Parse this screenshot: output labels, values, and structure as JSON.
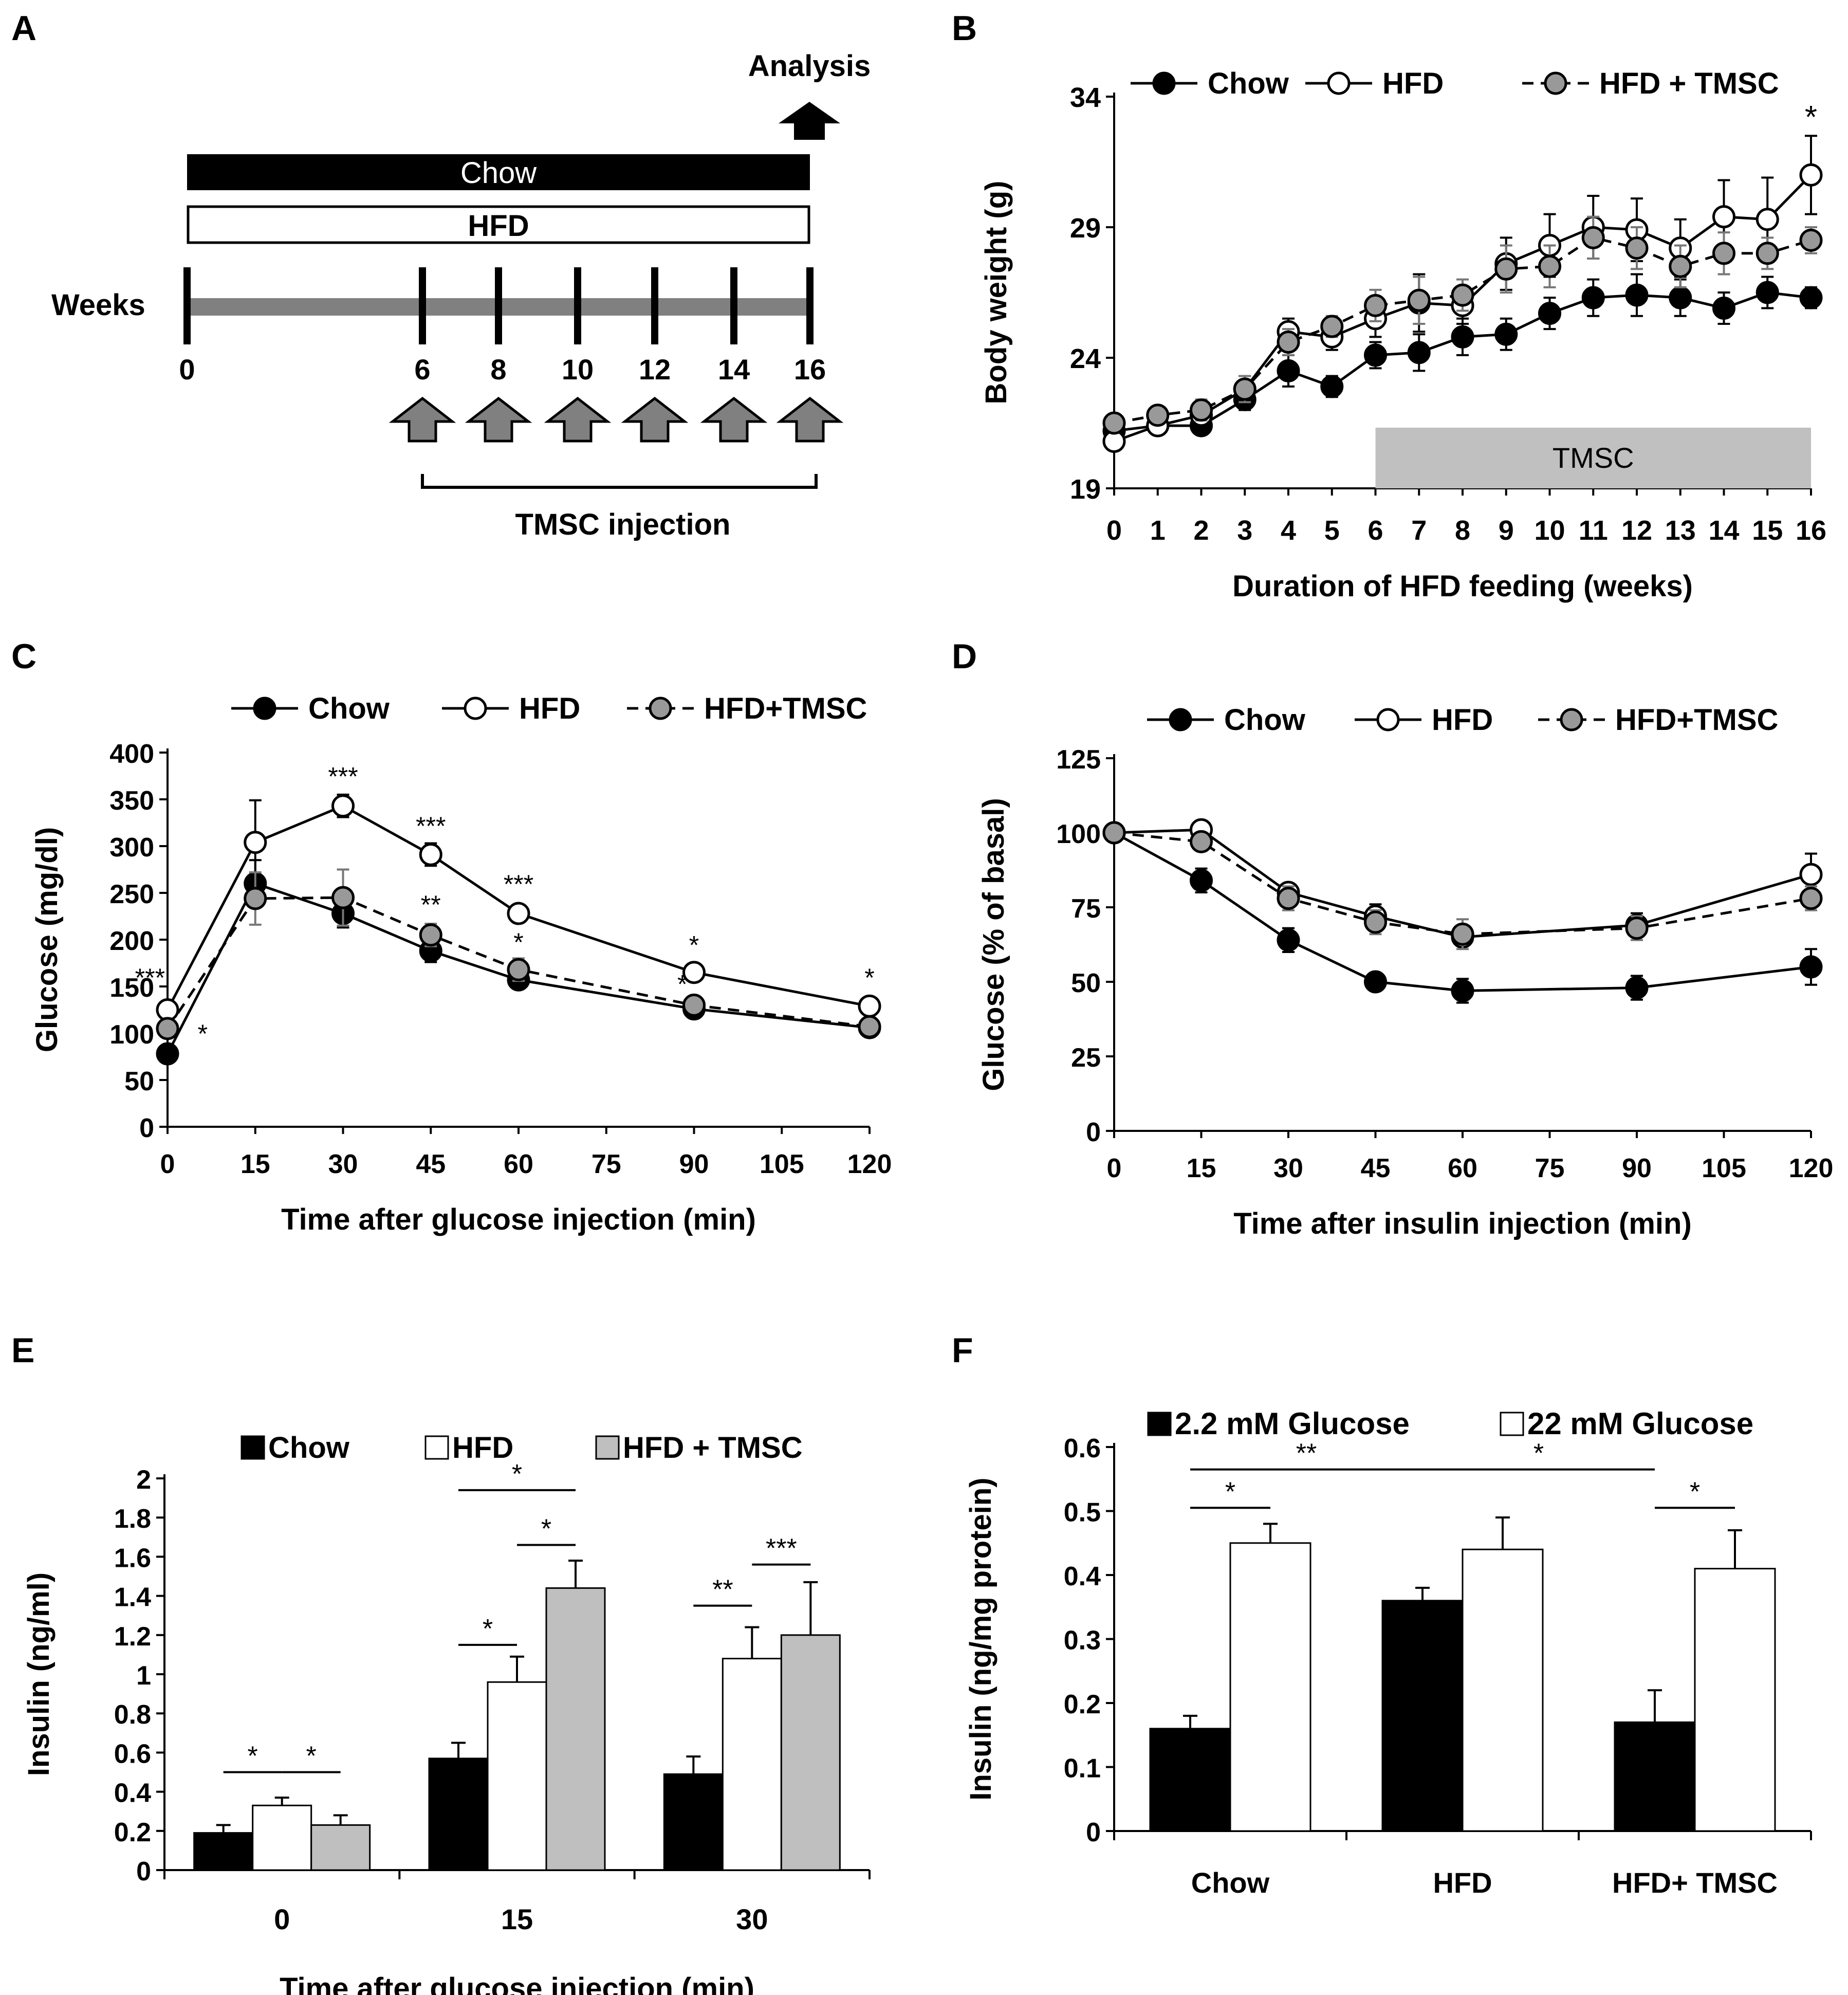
{
  "panel_letters": [
    "A",
    "B",
    "C",
    "D",
    "E",
    "F"
  ],
  "colors": {
    "chow": "#000000",
    "hfd": "#ffffff",
    "tmsc": "#999999",
    "tmsc_bar": "#c0c0c0",
    "bar_gray": "#bfbfbf",
    "week_line": "#808080",
    "arrow": "#808080"
  },
  "schematic": {
    "analysis_label": "Analysis",
    "chow_label": "Chow",
    "hfd_label": "HFD",
    "weeks_label": "Weeks",
    "week_ticks": [
      "0",
      "6",
      "8",
      "10",
      "12",
      "14",
      "16"
    ],
    "injection_label": "TMSC injection"
  },
  "chart_data": [
    {
      "id": "B",
      "type": "line",
      "title": "",
      "xlabel": "Duration of HFD feeding (weeks)",
      "ylabel": "Body weight (g)",
      "xlim": [
        0,
        16
      ],
      "ylim": [
        19,
        34
      ],
      "yticks": [
        19,
        24,
        29,
        34
      ],
      "x": [
        0,
        1,
        2,
        3,
        4,
        5,
        6,
        7,
        8,
        9,
        10,
        11,
        12,
        13,
        14,
        15,
        16
      ],
      "xtick_labels": [
        "0",
        "1",
        "2",
        "3",
        "4",
        "5",
        "6",
        "7",
        "8",
        "9",
        "10",
        "11",
        "12",
        "13",
        "14",
        "15",
        "16"
      ],
      "legend": [
        "Chow",
        "HFD",
        "HFD + TMSC"
      ],
      "band_label": "TMSC",
      "band_range": [
        6,
        16
      ],
      "series": [
        {
          "name": "Chow",
          "style": "solid",
          "fill": "#000000",
          "values": [
            21.2,
            21.4,
            21.4,
            22.4,
            23.5,
            22.9,
            24.1,
            24.2,
            24.8,
            24.9,
            25.7,
            26.3,
            26.4,
            26.3,
            25.9,
            26.5,
            26.3
          ],
          "errors": [
            0.3,
            0.3,
            0.3,
            0.4,
            0.6,
            0.4,
            0.5,
            0.7,
            0.7,
            0.6,
            0.6,
            0.7,
            0.8,
            0.7,
            0.6,
            0.6,
            0.4
          ]
        },
        {
          "name": "HFD",
          "style": "solid",
          "fill": "#ffffff",
          "values": [
            20.8,
            21.4,
            21.8,
            22.8,
            25.0,
            24.8,
            25.5,
            26.1,
            26.0,
            27.6,
            28.3,
            29.0,
            28.9,
            28.2,
            29.4,
            29.3,
            31.0
          ],
          "errors": [
            0.3,
            0.3,
            0.4,
            0.5,
            0.5,
            0.5,
            0.7,
            1.1,
            0.7,
            1.0,
            1.2,
            1.2,
            1.2,
            1.1,
            1.4,
            1.6,
            1.5
          ]
        },
        {
          "name": "HFD + TMSC",
          "style": "dashed",
          "fill": "#999999",
          "values": [
            21.5,
            21.8,
            22.0,
            22.8,
            24.6,
            25.2,
            26.0,
            26.2,
            26.4,
            27.4,
            27.5,
            28.6,
            28.2,
            27.5,
            28.0,
            28.0,
            28.5
          ],
          "errors": [
            0.3,
            0.3,
            0.4,
            0.5,
            0.5,
            0.4,
            0.6,
            0.9,
            0.6,
            0.9,
            0.8,
            0.8,
            0.8,
            0.8,
            0.8,
            0.6,
            0.5
          ]
        }
      ],
      "annotations": [
        {
          "x": 16,
          "y": 32.8,
          "text": "*"
        }
      ]
    },
    {
      "id": "C",
      "type": "line",
      "title": "",
      "xlabel": "Time after glucose injection (min)",
      "ylabel": "Glucose (mg/dl)",
      "xlim": [
        0,
        120
      ],
      "ylim": [
        0,
        400
      ],
      "xticks": [
        0,
        15,
        30,
        45,
        60,
        75,
        90,
        105,
        120
      ],
      "yticks": [
        0,
        50,
        100,
        150,
        200,
        250,
        300,
        350,
        400
      ],
      "x": [
        0,
        15,
        30,
        45,
        60,
        90,
        120
      ],
      "legend": [
        "Chow",
        "HFD",
        "HFD+TMSC"
      ],
      "series": [
        {
          "name": "Chow",
          "style": "solid",
          "fill": "#000000",
          "values": [
            78,
            260,
            228,
            188,
            157,
            126,
            106
          ],
          "errors": [
            5,
            25,
            15,
            12,
            8,
            5,
            4
          ]
        },
        {
          "name": "HFD",
          "style": "solid",
          "fill": "#ffffff",
          "values": [
            125,
            304,
            343,
            291,
            228,
            165,
            129
          ],
          "errors": [
            6,
            45,
            12,
            12,
            8,
            6,
            5
          ]
        },
        {
          "name": "HFD+TMSC",
          "style": "dashed",
          "fill": "#999999",
          "values": [
            105,
            244,
            245,
            205,
            168,
            130,
            107
          ],
          "errors": [
            5,
            28,
            30,
            12,
            12,
            8,
            5
          ]
        }
      ],
      "annotations": [
        {
          "x": -3,
          "y": 150,
          "text": "***"
        },
        {
          "x": 6,
          "y": 90,
          "text": "*"
        },
        {
          "x": 30,
          "y": 365,
          "text": "***"
        },
        {
          "x": 45,
          "y": 312,
          "text": "***"
        },
        {
          "x": 45,
          "y": 228,
          "text": "**"
        },
        {
          "x": 60,
          "y": 250,
          "text": "***"
        },
        {
          "x": 60,
          "y": 188,
          "text": "*"
        },
        {
          "x": 90,
          "y": 185,
          "text": "*"
        },
        {
          "x": 88,
          "y": 143,
          "text": "*"
        },
        {
          "x": 120,
          "y": 150,
          "text": "*"
        }
      ]
    },
    {
      "id": "D",
      "type": "line",
      "title": "",
      "xlabel": "Time after insulin injection (min)",
      "ylabel": "Glucose (% of basal)",
      "xlim": [
        0,
        120
      ],
      "ylim": [
        0,
        125
      ],
      "xticks": [
        0,
        15,
        30,
        45,
        60,
        75,
        90,
        105,
        120
      ],
      "yticks": [
        0,
        25,
        50,
        75,
        100,
        125
      ],
      "x": [
        0,
        15,
        30,
        60,
        45,
        90,
        120
      ],
      "legend": [
        "Chow",
        "HFD",
        "HFD+TMSC"
      ],
      "series": [
        {
          "name": "Chow",
          "style": "solid",
          "fill": "#000000",
          "values": [
            100,
            84,
            64,
            47,
            50,
            48,
            55
          ],
          "errors": [
            0,
            4,
            4,
            4,
            3,
            4,
            6
          ]
        },
        {
          "name": "HFD",
          "style": "solid",
          "fill": "#ffffff",
          "values": [
            100,
            101,
            80,
            65,
            72,
            69,
            86
          ],
          "errors": [
            0,
            3,
            3,
            3,
            4,
            4,
            7
          ]
        },
        {
          "name": "HFD+TMSC",
          "style": "dashed",
          "fill": "#999999",
          "values": [
            100,
            97,
            78,
            66,
            70,
            68,
            78
          ],
          "errors": [
            0,
            3,
            4,
            5,
            4,
            4,
            4
          ]
        }
      ]
    },
    {
      "id": "E",
      "type": "bar",
      "title": "",
      "xlabel": "Time after glucose injection (min)",
      "ylabel": "Insulin (ng/ml)",
      "ylim": [
        0,
        2
      ],
      "yticks": [
        0,
        0.2,
        0.4,
        0.6,
        0.8,
        1,
        1.2,
        1.4,
        1.6,
        1.8,
        2
      ],
      "ytick_labels": [
        "0",
        "0.2",
        "0.4",
        "0.6",
        "0.8",
        "1",
        "1.2",
        "1.4",
        "1.6",
        "1.8",
        "2"
      ],
      "categories": [
        "0",
        "15",
        "30"
      ],
      "legend": [
        "Chow",
        "HFD",
        "HFD + TMSC"
      ],
      "series": [
        {
          "name": "Chow",
          "fill": "#000000",
          "values": [
            0.19,
            0.57,
            0.49
          ],
          "errors": [
            0.04,
            0.08,
            0.09
          ]
        },
        {
          "name": "HFD",
          "fill": "#ffffff",
          "values": [
            0.33,
            0.96,
            1.08
          ],
          "errors": [
            0.04,
            0.13,
            0.16
          ]
        },
        {
          "name": "HFD + TMSC",
          "fill": "#bfbfbf",
          "values": [
            0.23,
            1.44,
            1.2
          ],
          "errors": [
            0.05,
            0.14,
            0.27
          ]
        }
      ],
      "significance": [
        {
          "cat": 0,
          "from": 0,
          "to": 1,
          "y": 0.5,
          "text": "*"
        },
        {
          "cat": 0,
          "from": 1,
          "to": 2,
          "y": 0.5,
          "text": "*"
        },
        {
          "cat": 1,
          "from": 0,
          "to": 1,
          "y": 1.15,
          "text": "*"
        },
        {
          "cat": 1,
          "from": 1,
          "to": 2,
          "y": 1.66,
          "text": "*"
        },
        {
          "cat": 1,
          "from": 0,
          "to": 2,
          "y": 1.94,
          "text": "*"
        },
        {
          "cat": 2,
          "from": 0,
          "to": 1,
          "y": 1.35,
          "text": "**"
        },
        {
          "cat": 2,
          "from": 1,
          "to": 2,
          "y": 1.56,
          "text": "***"
        }
      ]
    },
    {
      "id": "F",
      "type": "bar",
      "title": "",
      "xlabel": "",
      "ylabel": "Insulin (ng/mg protein)",
      "ylim": [
        0,
        0.6
      ],
      "yticks": [
        0,
        0.1,
        0.2,
        0.3,
        0.4,
        0.5,
        0.6
      ],
      "ytick_labels": [
        "0",
        "0.1",
        "0.2",
        "0.3",
        "0.4",
        "0.5",
        "0.6"
      ],
      "categories": [
        "Chow",
        "HFD",
        "HFD+ TMSC"
      ],
      "legend": [
        "2.2 mM Glucose",
        "22 mM Glucose"
      ],
      "series": [
        {
          "name": "2.2 mM Glucose",
          "fill": "#000000",
          "values": [
            0.16,
            0.36,
            0.17
          ],
          "errors": [
            0.02,
            0.02,
            0.05
          ]
        },
        {
          "name": "22 mM Glucose",
          "fill": "#ffffff",
          "values": [
            0.45,
            0.44,
            0.41
          ],
          "errors": [
            0.03,
            0.05,
            0.06
          ]
        }
      ],
      "significance": [
        {
          "x1": [
            0,
            0
          ],
          "x2": [
            0,
            1
          ],
          "y": 0.505,
          "text": "*"
        },
        {
          "x1": [
            0,
            0
          ],
          "x2": [
            1,
            0
          ],
          "y": 0.565,
          "text": "**"
        },
        {
          "x1": [
            1,
            0
          ],
          "x2": [
            2,
            0
          ],
          "y": 0.565,
          "text": "*"
        },
        {
          "x1": [
            2,
            0
          ],
          "x2": [
            2,
            1
          ],
          "y": 0.505,
          "text": "*"
        }
      ]
    }
  ]
}
